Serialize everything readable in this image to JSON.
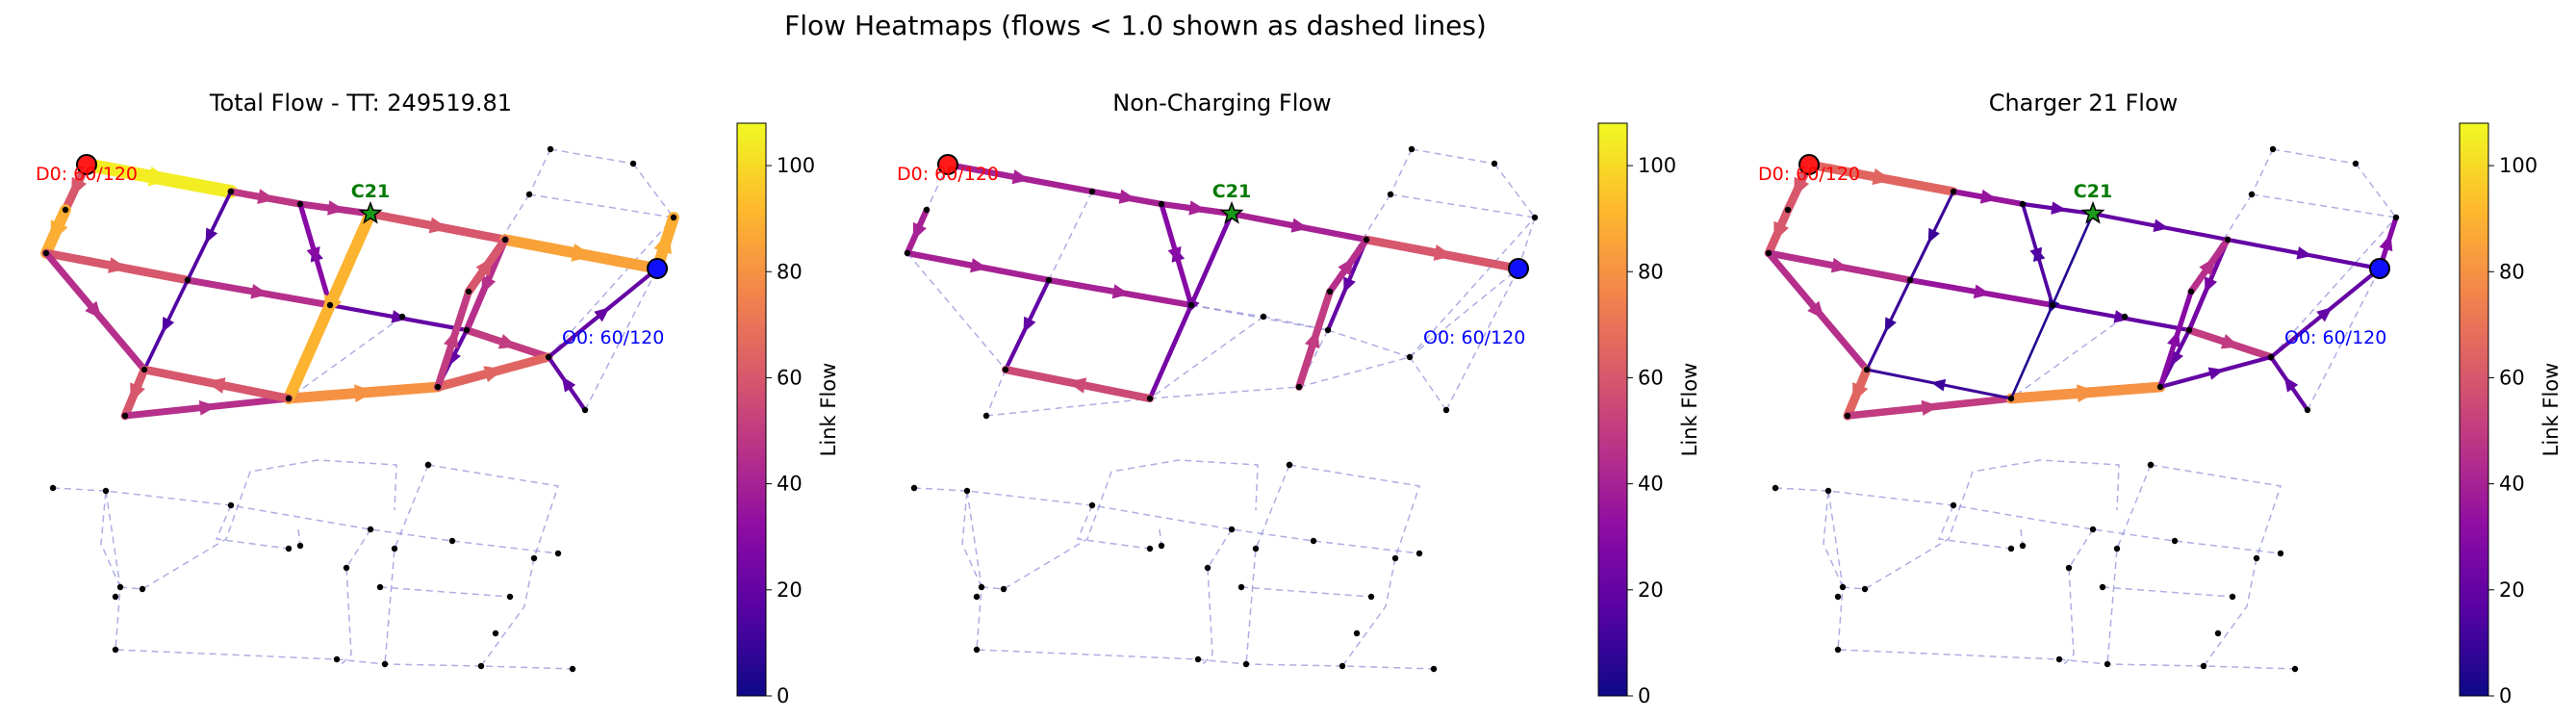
{
  "figure": {
    "suptitle": "Flow Heatmaps (flows < 1.0 shown as dashed lines)"
  },
  "chart_data": [
    {
      "type": "network-heatmap",
      "title": "Total Flow - TT: 249519.81",
      "colorbar": {
        "label": "Link Flow",
        "range": [
          0,
          108
        ],
        "ticks": [
          0,
          20,
          40,
          60,
          80,
          100
        ],
        "colormap": "plasma"
      },
      "dest_label": "D0: 60/120",
      "origin_label": "O0: 60/120",
      "charger_label": "C21",
      "flows": [
        105,
        60,
        88,
        60,
        45,
        20,
        50,
        45,
        60,
        45,
        80,
        65,
        20,
        20,
        88,
        48,
        45,
        60,
        85,
        45,
        20,
        15,
        15,
        20,
        30,
        90,
        60,
        50,
        60
      ]
    },
    {
      "type": "network-heatmap",
      "title": "Non-Charging Flow",
      "colorbar": {
        "label": "Link Flow",
        "range": [
          0,
          108
        ],
        "ticks": [
          0,
          20,
          40,
          60,
          80,
          100
        ],
        "colormap": "plasma"
      },
      "dest_label": "D0: 60/120",
      "origin_label": "O0: 60/120",
      "charger_label": "C21",
      "flows": [
        40,
        0,
        40,
        40,
        40,
        0,
        0,
        0,
        0,
        0,
        0,
        0,
        0,
        0,
        0,
        40,
        40,
        40,
        60,
        20,
        0,
        0,
        20,
        25,
        30,
        25,
        55,
        50,
        45
      ]
    },
    {
      "type": "network-heatmap",
      "title": "Charger 21 Flow",
      "colorbar": {
        "label": "Link Flow",
        "range": [
          0,
          108
        ],
        "ticks": [
          0,
          20,
          40,
          60,
          80,
          100
        ],
        "colormap": "plasma"
      },
      "dest_label": "D0: 60/120",
      "origin_label": "O0: 60/120",
      "charger_label": "C21",
      "flows": [
        65,
        60,
        60,
        45,
        35,
        20,
        50,
        45,
        65,
        50,
        80,
        20,
        20,
        20,
        30,
        35,
        20,
        20,
        20,
        25,
        20,
        10,
        10,
        10,
        15,
        5,
        10,
        30,
        45
      ]
    }
  ]
}
